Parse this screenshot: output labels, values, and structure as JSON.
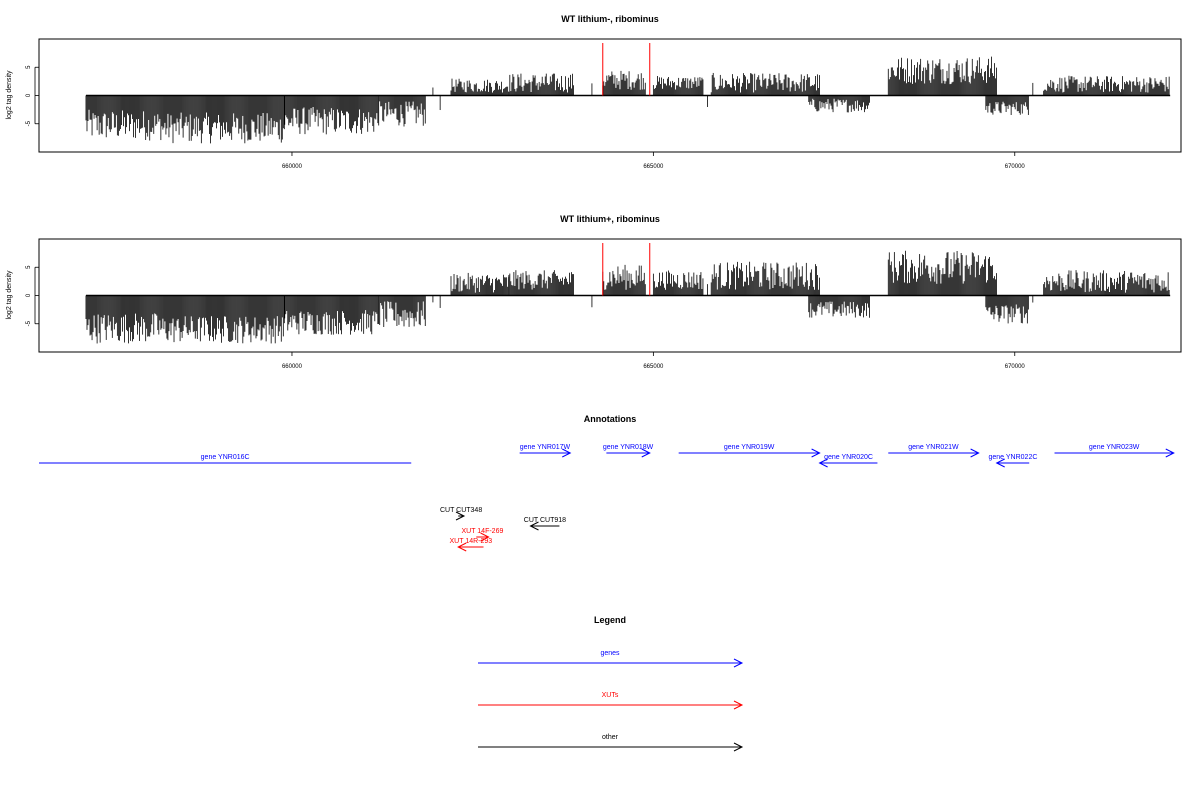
{
  "chart_data": [
    {
      "type": "bar",
      "title": "WT lithium-, ribominus",
      "ylabel": "log2 tag density",
      "xlabel": "",
      "xlim": [
        656500,
        672300
      ],
      "ylim": [
        -10,
        10
      ],
      "xticks": [
        660000,
        665000,
        670000
      ],
      "xtick_labels": [
        "660000",
        "665000",
        "670000"
      ],
      "yticks": [
        -5,
        0,
        5
      ],
      "ytick_labels": [
        "-5",
        "0",
        "5"
      ],
      "grid": false,
      "data_range": [
        657150,
        672150
      ],
      "marker_lines": [
        664300,
        664950
      ],
      "segments": [
        {
          "from": 657150,
          "to": 658200,
          "min": -8.0,
          "max": -2.5
        },
        {
          "from": 658200,
          "to": 659900,
          "min": -8.5,
          "max": -3.0
        },
        {
          "from": 659900,
          "to": 661200,
          "min": -7.0,
          "max": -2.0
        },
        {
          "from": 661200,
          "to": 661850,
          "min": -5.5,
          "max": -1.0
        },
        {
          "from": 662200,
          "to": 663000,
          "min": 0.5,
          "max": 3.0
        },
        {
          "from": 663000,
          "to": 663900,
          "min": 0.5,
          "max": 4.0
        },
        {
          "from": 664300,
          "to": 664900,
          "min": 1.0,
          "max": 4.5
        },
        {
          "from": 665000,
          "to": 665700,
          "min": 1.0,
          "max": 3.5
        },
        {
          "from": 665800,
          "to": 667300,
          "min": 0.5,
          "max": 4.0
        },
        {
          "from": 667150,
          "to": 668000,
          "min": -3.0,
          "max": -0.5
        },
        {
          "from": 668250,
          "to": 669750,
          "min": 2.0,
          "max": 7.0
        },
        {
          "from": 669600,
          "to": 670200,
          "min": -3.5,
          "max": -1.0
        },
        {
          "from": 670400,
          "to": 672150,
          "min": 0.5,
          "max": 3.5
        }
      ]
    },
    {
      "type": "bar",
      "title": "WT lithium+, ribominus",
      "ylabel": "log2 tag density",
      "xlabel": "",
      "xlim": [
        656500,
        672300
      ],
      "ylim": [
        -10,
        10
      ],
      "xticks": [
        660000,
        665000,
        670000
      ],
      "xtick_labels": [
        "660000",
        "665000",
        "670000"
      ],
      "yticks": [
        -5,
        0,
        5
      ],
      "ytick_labels": [
        "-5",
        "0",
        "5"
      ],
      "grid": false,
      "data_range": [
        657150,
        672150
      ],
      "marker_lines": [
        664300,
        664950
      ],
      "segments": [
        {
          "from": 657150,
          "to": 658200,
          "min": -8.5,
          "max": -3.0
        },
        {
          "from": 658200,
          "to": 659900,
          "min": -8.5,
          "max": -3.5
        },
        {
          "from": 659900,
          "to": 661200,
          "min": -7.0,
          "max": -2.5
        },
        {
          "from": 661200,
          "to": 661850,
          "min": -6.0,
          "max": -1.0
        },
        {
          "from": 662200,
          "to": 663000,
          "min": 0.5,
          "max": 4.0
        },
        {
          "from": 663000,
          "to": 663900,
          "min": 1.0,
          "max": 4.5
        },
        {
          "from": 664300,
          "to": 664900,
          "min": 1.0,
          "max": 5.5
        },
        {
          "from": 665000,
          "to": 665700,
          "min": 1.0,
          "max": 4.5
        },
        {
          "from": 665800,
          "to": 667300,
          "min": 1.0,
          "max": 6.0
        },
        {
          "from": 667150,
          "to": 668000,
          "min": -4.0,
          "max": -1.0
        },
        {
          "from": 668250,
          "to": 669750,
          "min": 2.0,
          "max": 8.0
        },
        {
          "from": 669600,
          "to": 670200,
          "min": -5.0,
          "max": -1.5
        },
        {
          "from": 670400,
          "to": 672150,
          "min": 0.5,
          "max": 4.5
        }
      ]
    }
  ],
  "annotations": {
    "title": "Annotations",
    "features": [
      {
        "label": "gene YNR016C",
        "color": "#0000ff",
        "from": 661650,
        "to": 656500,
        "level": 2
      },
      {
        "label": "gene YNR017W",
        "color": "#0000ff",
        "from": 663150,
        "to": 663850,
        "level": 1
      },
      {
        "label": "gene YNR018W",
        "color": "#0000ff",
        "from": 664350,
        "to": 664950,
        "level": 1
      },
      {
        "label": "gene YNR019W",
        "color": "#0000ff",
        "from": 665350,
        "to": 667300,
        "level": 1
      },
      {
        "label": "gene YNR020C",
        "color": "#0000ff",
        "from": 668100,
        "to": 667300,
        "level": 2
      },
      {
        "label": "gene YNR021W",
        "color": "#0000ff",
        "from": 668250,
        "to": 669500,
        "level": 1
      },
      {
        "label": "gene YNR022C",
        "color": "#0000ff",
        "from": 670200,
        "to": 669750,
        "level": 2
      },
      {
        "label": "gene YNR023W",
        "color": "#0000ff",
        "from": 670550,
        "to": 672200,
        "level": 1
      },
      {
        "label": "CUT CUT348",
        "color": "#000000",
        "from": 662300,
        "to": 662380,
        "level": 4
      },
      {
        "label": "CUT CUT918",
        "color": "#000000",
        "from": 663700,
        "to": 663300,
        "level": 5
      },
      {
        "label": "XUT 14F-269",
        "color": "#ff0000",
        "from": 662550,
        "to": 662720,
        "level": 6
      },
      {
        "label": "XUT 14R-293",
        "color": "#ff0000",
        "from": 662650,
        "to": 662300,
        "level": 7
      }
    ]
  },
  "legend": {
    "title": "Legend",
    "items": [
      {
        "label": "genes",
        "color": "#0000ff"
      },
      {
        "label": "XUTs",
        "color": "#ff0000"
      },
      {
        "label": "other",
        "color": "#000000"
      }
    ]
  }
}
